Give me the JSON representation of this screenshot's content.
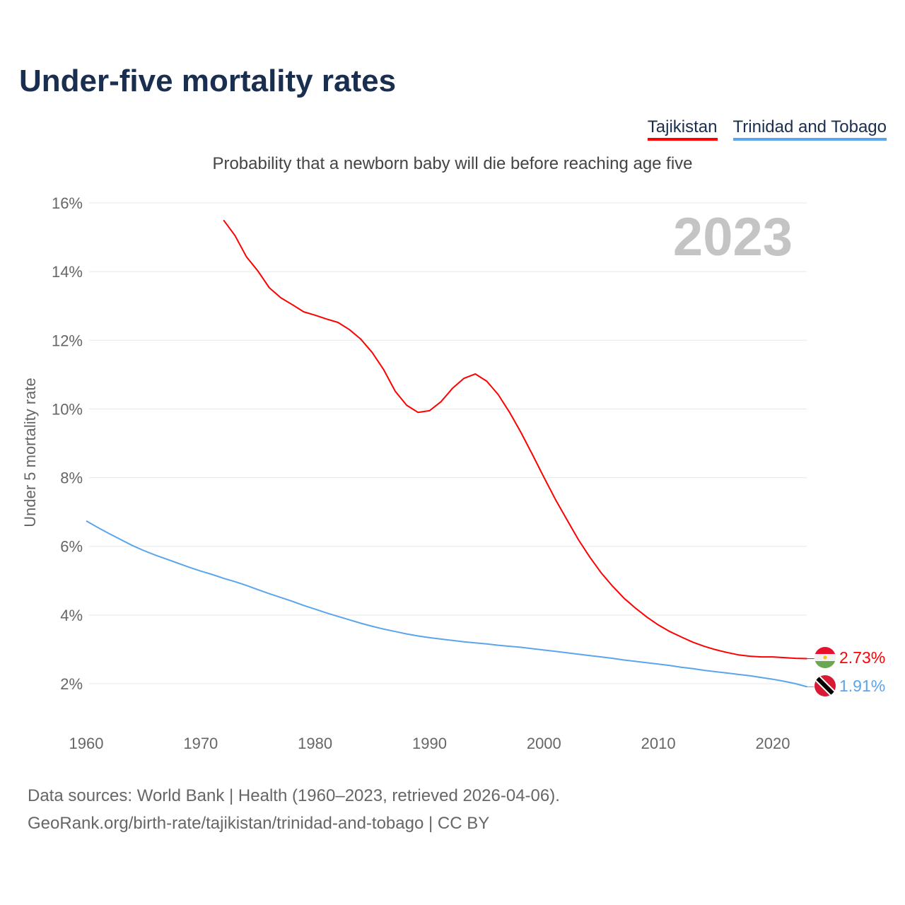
{
  "title": "Under-five mortality rates",
  "legend": [
    {
      "label": "Tajikistan",
      "color": "#ff0000"
    },
    {
      "label": "Trinidad and Tobago",
      "color": "#5aa5ec"
    }
  ],
  "subtitle": "Probability that a newborn baby will die before reaching age five",
  "year_watermark": "2023",
  "source_line1": "Data sources: World Bank | Health (1960–2023, retrieved 2026-04-06).",
  "source_line2": "GeoRank.org/birth-rate/tajikistan/trinidad-and-tobago | CC BY",
  "chart_data": {
    "type": "line",
    "title": "Under-five mortality rates",
    "ylabel": "Under 5 mortality rate",
    "xlabel": "",
    "xlim": [
      1960,
      2023
    ],
    "ylim": [
      2,
      16
    ],
    "yticks": [
      2,
      4,
      6,
      8,
      10,
      12,
      14,
      16
    ],
    "ytick_labels": [
      "2%",
      "4%",
      "6%",
      "8%",
      "10%",
      "12%",
      "14%",
      "16%"
    ],
    "xticks": [
      1960,
      1970,
      1980,
      1990,
      2000,
      2010,
      2020
    ],
    "xtick_labels": [
      "1960",
      "1970",
      "1980",
      "1990",
      "2000",
      "2010",
      "2020"
    ],
    "grid": true,
    "legend_position": "top-right",
    "series": [
      {
        "name": "Tajikistan",
        "color": "#ff0000",
        "start_year": 1972,
        "end_label": "2.73%",
        "flag": "tajikistan-flag",
        "values": [
          15.5,
          15.05,
          14.43,
          14.02,
          13.53,
          13.24,
          13.04,
          12.83,
          12.73,
          12.62,
          12.52,
          12.31,
          12.03,
          11.64,
          11.14,
          10.52,
          10.11,
          9.9,
          9.95,
          10.21,
          10.6,
          10.89,
          11.02,
          10.81,
          10.42,
          9.9,
          9.31,
          8.67,
          8.01,
          7.37,
          6.78,
          6.2,
          5.69,
          5.23,
          4.84,
          4.49,
          4.2,
          3.94,
          3.71,
          3.52,
          3.36,
          3.21,
          3.09,
          2.99,
          2.91,
          2.84,
          2.8,
          2.78,
          2.78,
          2.76,
          2.74,
          2.73
        ]
      },
      {
        "name": "Trinidad and Tobago",
        "color": "#5aa5ec",
        "start_year": 1960,
        "end_label": "1.91%",
        "flag": "trinidad-and-tobago-flag",
        "values": [
          6.74,
          6.55,
          6.37,
          6.2,
          6.03,
          5.88,
          5.75,
          5.63,
          5.51,
          5.39,
          5.28,
          5.18,
          5.07,
          4.97,
          4.86,
          4.74,
          4.62,
          4.51,
          4.4,
          4.28,
          4.17,
          4.06,
          3.96,
          3.86,
          3.76,
          3.67,
          3.59,
          3.52,
          3.45,
          3.39,
          3.34,
          3.3,
          3.26,
          3.22,
          3.19,
          3.16,
          3.12,
          3.09,
          3.06,
          3.02,
          2.98,
          2.94,
          2.9,
          2.86,
          2.82,
          2.78,
          2.74,
          2.69,
          2.65,
          2.61,
          2.57,
          2.53,
          2.48,
          2.44,
          2.39,
          2.35,
          2.31,
          2.27,
          2.23,
          2.18,
          2.13,
          2.07,
          2.0,
          1.91
        ]
      }
    ]
  }
}
